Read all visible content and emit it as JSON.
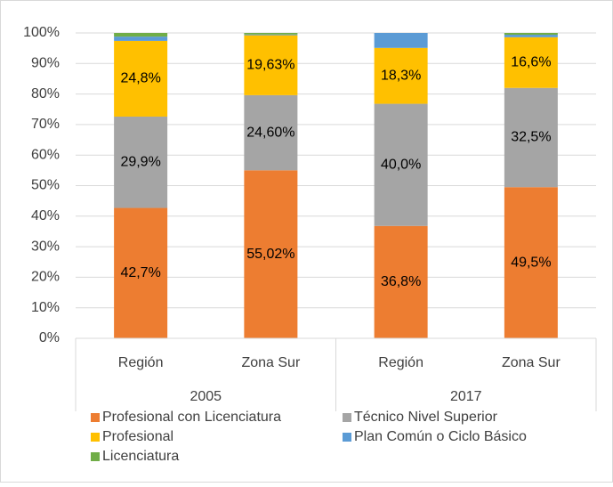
{
  "chart_data": {
    "type": "stacked_bar",
    "categories": [
      "Región",
      "Zona Sur",
      "Región",
      "Zona Sur"
    ],
    "group_labels": [
      "2005",
      "2017"
    ],
    "ylim": [
      0,
      100
    ],
    "yticks": [
      {
        "value": 0,
        "label": "0%"
      },
      {
        "value": 10,
        "label": "10%"
      },
      {
        "value": 20,
        "label": "20%"
      },
      {
        "value": 30,
        "label": "30%"
      },
      {
        "value": 40,
        "label": "40%"
      },
      {
        "value": 50,
        "label": "50%"
      },
      {
        "value": 60,
        "label": "60%"
      },
      {
        "value": 70,
        "label": "70%"
      },
      {
        "value": 80,
        "label": "80%"
      },
      {
        "value": 90,
        "label": "90%"
      },
      {
        "value": 100,
        "label": "100%"
      }
    ],
    "grid": true,
    "series": [
      {
        "name": "Profesional con Licenciatura",
        "color": "#ed7d31",
        "values": [
          42.7,
          55.02,
          36.8,
          49.5
        ],
        "value_labels": [
          "42,7%",
          "55,02%",
          "36,8%",
          "49,5%"
        ]
      },
      {
        "name": "Técnico Nivel Superior",
        "color": "#a5a5a5",
        "values": [
          29.9,
          24.6,
          40.0,
          32.5
        ],
        "value_labels": [
          "29,9%",
          "24,60%",
          "40,0%",
          "32,5%"
        ]
      },
      {
        "name": "Profesional",
        "color": "#ffc000",
        "values": [
          24.8,
          19.63,
          18.3,
          16.6
        ],
        "value_labels": [
          "24,8%",
          "19,63%",
          "18,3%",
          "16,6%"
        ]
      },
      {
        "name": "Plan Común o Ciclo Básico",
        "color": "#5b9bd5",
        "values": [
          1.4,
          0.25,
          4.9,
          0.8
        ]
      },
      {
        "name": "Licenciatura",
        "color": "#70ad47",
        "values": [
          1.2,
          0.5,
          0,
          0.6
        ]
      }
    ]
  }
}
